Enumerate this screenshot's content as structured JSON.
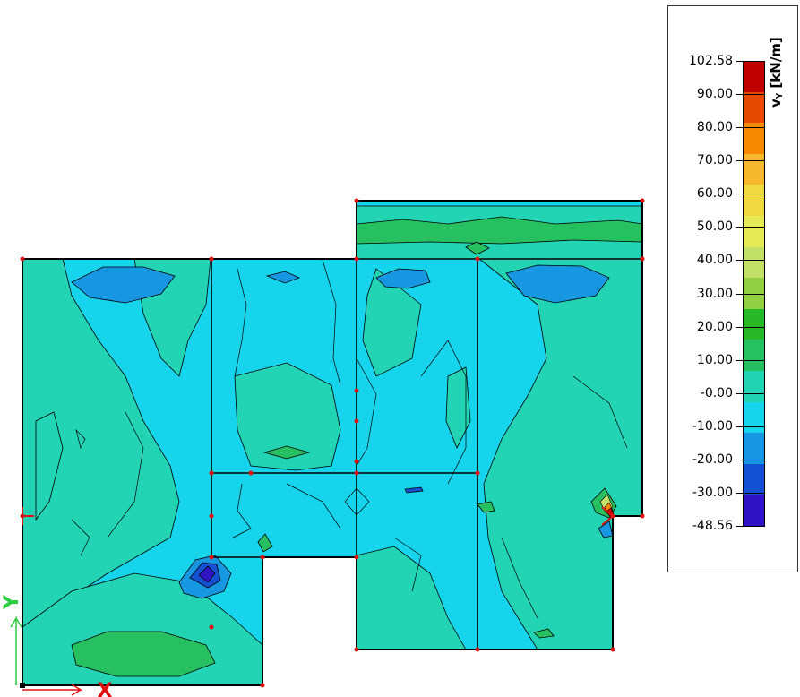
{
  "legend": {
    "title": "vᵧ [kN/m]",
    "labels": [
      "102.58",
      "90.00",
      "80.00",
      "70.00",
      "60.00",
      "50.00",
      "40.00",
      "30.00",
      "20.00",
      "10.00",
      "-0.00",
      "-10.00",
      "-20.00",
      "-30.00",
      "-48.56"
    ],
    "colors": [
      "#c00000",
      "#e64a00",
      "#f58a00",
      "#f5b82e",
      "#f0d840",
      "#e6ea56",
      "#c3e168",
      "#92cf45",
      "#28b828",
      "#27c060",
      "#22d4b4",
      "#15d4ec",
      "#1796e2",
      "#1450d2",
      "#3014c4"
    ]
  },
  "axes": {
    "y_label": "Y",
    "x_label": "X"
  }
}
